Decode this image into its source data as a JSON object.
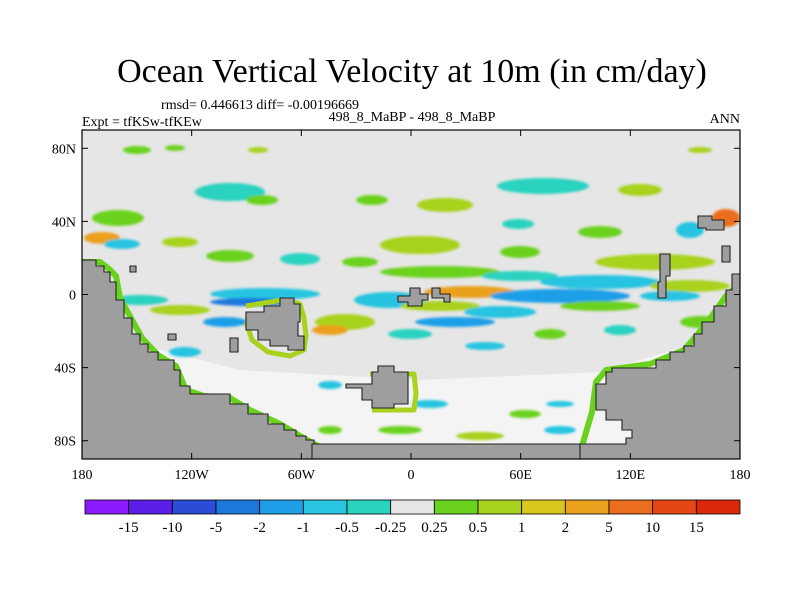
{
  "chart_data": {
    "type": "heatmap",
    "title": "Ocean Vertical Velocity at 10m (in cm/day)",
    "stats": "rmsd= 0.446613 diff= -0.00196669",
    "experiment": "Expt = tfKSw-tfKEw",
    "case": "498_8_MaBP - 498_8_MaBP",
    "season": "ANN",
    "lon_range": [
      -180,
      180
    ],
    "lat_range": [
      -90,
      90
    ],
    "xticks": [
      {
        "value": -180,
        "label": "180"
      },
      {
        "value": -120,
        "label": "120W"
      },
      {
        "value": -60,
        "label": "60W"
      },
      {
        "value": 0,
        "label": "0"
      },
      {
        "value": 60,
        "label": "60E"
      },
      {
        "value": 120,
        "label": "120E"
      },
      {
        "value": 180,
        "label": "180"
      }
    ],
    "yticks": [
      {
        "value": 80,
        "label": "80N"
      },
      {
        "value": 40,
        "label": "40N"
      },
      {
        "value": 0,
        "label": "0"
      },
      {
        "value": -40,
        "label": "40S"
      },
      {
        "value": -80,
        "label": "80S"
      }
    ],
    "colorbar": {
      "labels": [
        "-15",
        "-10",
        "-5",
        "-2",
        "-1",
        "-0.5",
        "-0.25",
        "0.25",
        "0.5",
        "1",
        "2",
        "5",
        "10",
        "15"
      ],
      "colors": [
        "#8c1aff",
        "#5a1ee6",
        "#2a4cd6",
        "#1e78dc",
        "#1e9fe8",
        "#28c4e0",
        "#2ad2c0",
        "#e6e6e6",
        "#6ad21e",
        "#a8d21e",
        "#d8c81e",
        "#eba01e",
        "#eb6e1e",
        "#e64614",
        "#dc2808"
      ]
    },
    "colors": {
      "ocean_neutral": "#e6e6e6",
      "land": "#9e9e9e",
      "coast": "#222222"
    }
  }
}
